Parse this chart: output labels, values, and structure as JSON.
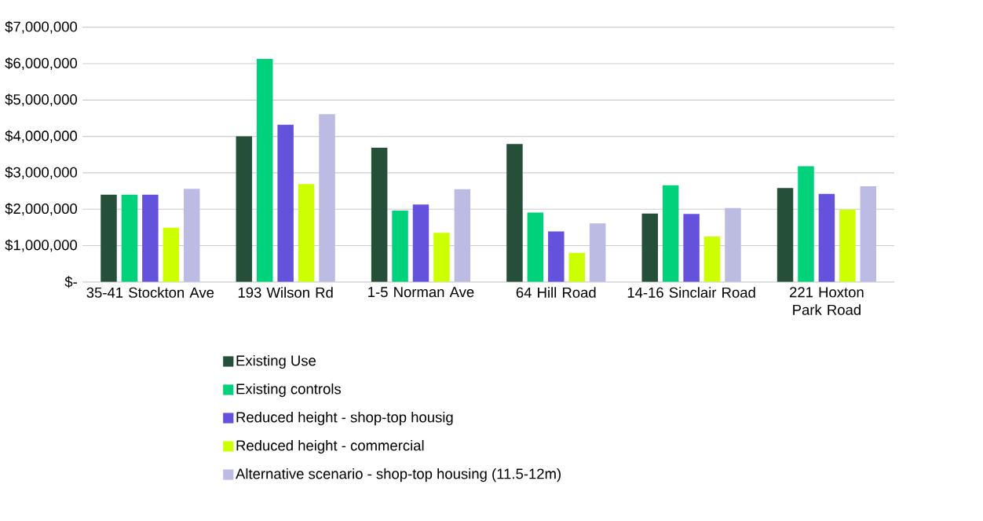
{
  "chart_data": {
    "type": "bar",
    "categories": [
      "35-41 Stockton Ave",
      "193 Wilson Rd",
      "1-5 Norman Ave",
      "64 Hill Road",
      "14-16 Sinclair Road",
      "221 Hoxton Park Road"
    ],
    "series": [
      {
        "name": "Existing Use",
        "color": "#264f3a",
        "values": [
          2400000,
          4000000,
          3690000,
          3790000,
          1880000,
          2580000
        ]
      },
      {
        "name": "Existing controls",
        "color": "#00d27c",
        "values": [
          2400000,
          6130000,
          1960000,
          1910000,
          2660000,
          3180000
        ]
      },
      {
        "name": "Reduced height - shop-top housig",
        "color": "#6452dd",
        "values": [
          2400000,
          4320000,
          2130000,
          1390000,
          1870000,
          2420000
        ]
      },
      {
        "name": "Reduced height - commercial",
        "color": "#ccff00",
        "values": [
          1490000,
          2690000,
          1350000,
          800000,
          1250000,
          1990000
        ]
      },
      {
        "name": "Alternative scenario - shop-top housing (11.5-12m)",
        "color": "#bbbbe4",
        "values": [
          2560000,
          4610000,
          2550000,
          1610000,
          2030000,
          2630000
        ]
      }
    ],
    "ylim": [
      0,
      7000000
    ],
    "yticks": [
      {
        "value": 0,
        "label": "$-"
      },
      {
        "value": 1000000,
        "label": "$1,000,000"
      },
      {
        "value": 2000000,
        "label": "$2,000,000"
      },
      {
        "value": 3000000,
        "label": "$3,000,000"
      },
      {
        "value": 4000000,
        "label": "$4,000,000"
      },
      {
        "value": 5000000,
        "label": "$5,000,000"
      },
      {
        "value": 6000000,
        "label": "$6,000,000"
      },
      {
        "value": 7000000,
        "label": "$7,000,000"
      }
    ],
    "grid": "y",
    "legend": "bottom"
  }
}
